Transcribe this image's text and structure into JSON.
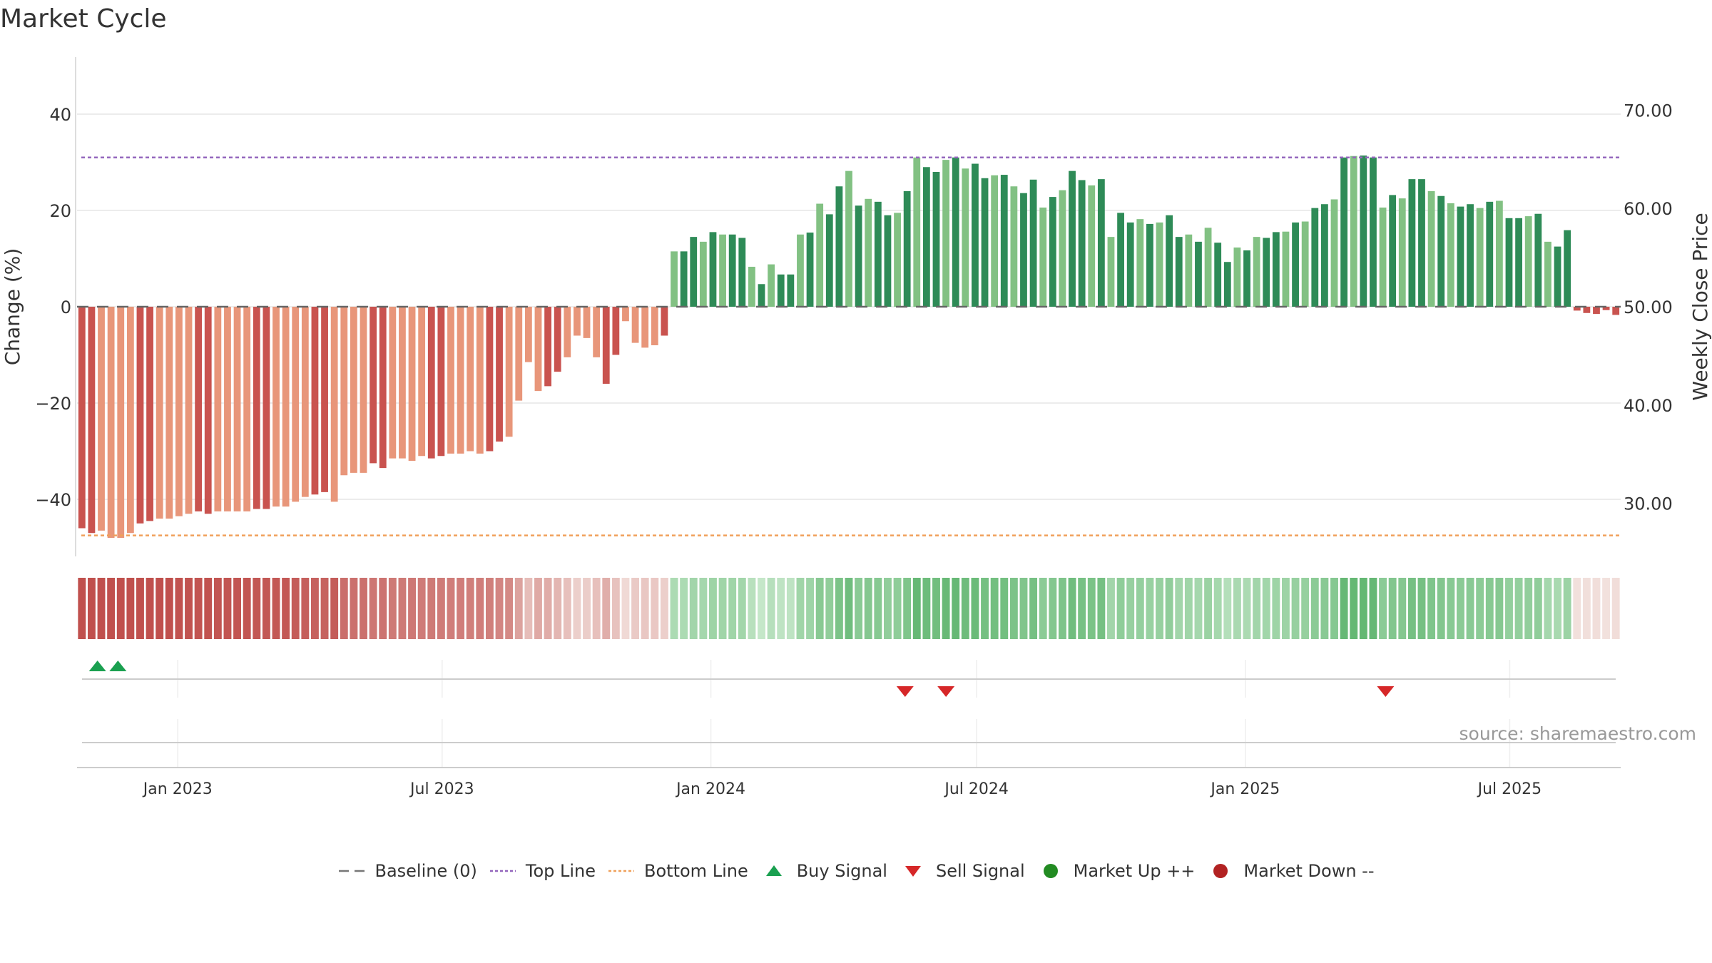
{
  "title": "Market Cycle",
  "source": "source: sharemaestro.com",
  "colors": {
    "down_dark": "#c9534f",
    "down_light": "#e8967a",
    "up_dark": "#2e8b57",
    "up_light": "#82c183",
    "top_line": "#9467bd",
    "bottom_line": "#f0a05a",
    "buy": "#1aa050",
    "sell": "#d62728"
  },
  "legend": [
    {
      "id": "baseline",
      "label": "Baseline (0)",
      "icon": "dash-line-icon",
      "color": "#777777"
    },
    {
      "id": "top",
      "label": "Top Line",
      "icon": "dotted-line-icon",
      "color": "#9467bd"
    },
    {
      "id": "bottom",
      "label": "Bottom Line",
      "icon": "dotted-line-icon",
      "color": "#f0a05a"
    },
    {
      "id": "buy",
      "label": "Buy Signal",
      "icon": "triangle-up-icon",
      "color": "#1aa050"
    },
    {
      "id": "sell",
      "label": "Sell Signal",
      "icon": "triangle-down-icon",
      "color": "#d62728"
    },
    {
      "id": "up",
      "label": "Market Up ++",
      "icon": "dot-icon",
      "color": "#228b22"
    },
    {
      "id": "down",
      "label": "Market Down --",
      "icon": "dot-icon",
      "color": "#b22222"
    }
  ],
  "chart_data": {
    "type": "bar",
    "title": "Market Cycle",
    "ylabel_left": "Change (%)",
    "ylabel_right": "Weekly Close Price",
    "ylim_left": [
      -52,
      52
    ],
    "yticks_left": [
      40,
      20,
      0,
      -20,
      -40
    ],
    "yticks_left_labels": [
      "40",
      "20",
      "0",
      "−20",
      "−40"
    ],
    "ylim_right": [
      25.5,
      81.5
    ],
    "yticks_right": [
      70,
      60,
      50,
      40,
      30
    ],
    "yticks_right_labels": [
      "70.00",
      "60.00",
      "50.00",
      "40.00",
      "30.00"
    ],
    "x_start": "2022-10-24",
    "x_end": "2025-09-15",
    "xticks": [
      "2023-01-01",
      "2023-07-01",
      "2024-01-01",
      "2024-07-01",
      "2025-01-01",
      "2025-07-01"
    ],
    "xtick_labels": [
      "Jan 2023",
      "Jul 2023",
      "Jan 2024",
      "Jul 2024",
      "Jan 2025",
      "Jul 2025"
    ],
    "top_line": 31,
    "bottom_line": -47.5,
    "grid": true,
    "legend_position": "bottom-center",
    "series": [
      {
        "name": "Change (%)",
        "weekly_values": [
          -46,
          -47,
          -46.5,
          -48,
          -48,
          -47,
          -45,
          -44.5,
          -44,
          -44,
          -43.5,
          -43,
          -42.5,
          -43,
          -42.5,
          -42.5,
          -42.5,
          -42.5,
          -42,
          -42,
          -41.5,
          -41.5,
          -40.5,
          -39.5,
          -39,
          -38.5,
          -40.5,
          -35,
          -34.5,
          -34.5,
          -32.5,
          -33.5,
          -31.5,
          -31.5,
          -32,
          -31,
          -31.5,
          -31,
          -30.5,
          -30.5,
          -30,
          -30.5,
          -30,
          -28,
          -27,
          -19.5,
          -11.5,
          -17.5,
          -16.5,
          -13.5,
          -10.5,
          -6,
          -6.5,
          -10.5,
          -16,
          -10,
          -3,
          -7.5,
          -8.5,
          -8,
          -6,
          11.5,
          11.5,
          14.5,
          13.5,
          15.5,
          15,
          15,
          14.3,
          8.3,
          4.7,
          8.8,
          6.7,
          6.7,
          15,
          15.4,
          21.4,
          19.2,
          25,
          28.2,
          21,
          22.4,
          21.8,
          19,
          19.5,
          24,
          31,
          29,
          28,
          30.5,
          31,
          28.7,
          29.7,
          26.7,
          27.3,
          27.4,
          25,
          23.6,
          26.4,
          20.6,
          22.8,
          24.2,
          28.2,
          26.3,
          25.2,
          26.5,
          14.5,
          19.5,
          17.5,
          18.2,
          17.2,
          17.5,
          19,
          14.5,
          15,
          13.5,
          16.4,
          13.3,
          9.3,
          12.3,
          11.7,
          14.5,
          14.3,
          15.5,
          15.6,
          17.5,
          17.7,
          20.5,
          21.3,
          22.3,
          31,
          31.3,
          31.4,
          31,
          20.6,
          23.2,
          22.5,
          26.5,
          26.5,
          24,
          23,
          21.5,
          20.8,
          21.3,
          20.5,
          21.8,
          22,
          18.4,
          18.4,
          18.8,
          19.3,
          13.5,
          12.5,
          15.9,
          -0.8,
          -1.3,
          -1.5,
          -0.7,
          -1.7
        ]
      },
      {
        "name": "Baseline (0)",
        "value": 0
      }
    ],
    "signals": {
      "buy": [
        "2022-11-07",
        "2022-11-21"
      ],
      "sell": [
        "2024-05-13",
        "2024-06-10",
        "2025-04-07"
      ]
    }
  }
}
